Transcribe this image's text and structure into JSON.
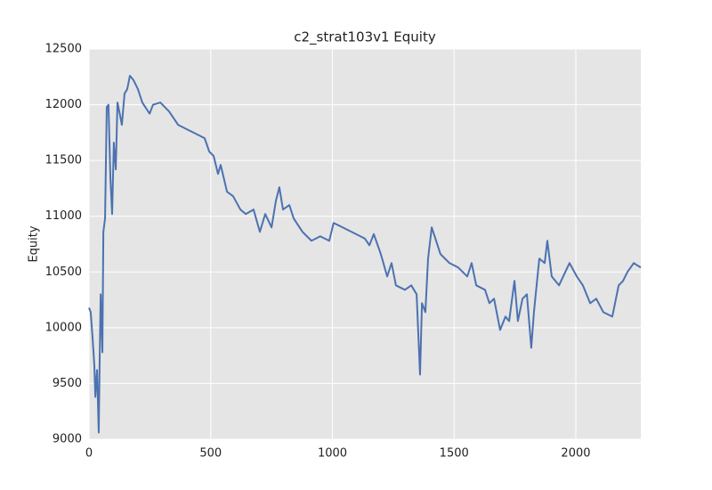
{
  "chart_data": {
    "type": "line",
    "title": "c2_strat103v1 Equity",
    "ylabel": "Equity",
    "x": [
      0,
      7,
      15,
      22,
      26,
      33,
      40,
      44,
      48,
      55,
      59,
      66,
      73,
      80,
      88,
      95,
      102,
      110,
      117,
      128,
      135,
      146,
      157,
      168,
      183,
      201,
      219,
      249,
      263,
      293,
      329,
      366,
      402,
      439,
      475,
      494,
      512,
      530,
      541,
      567,
      592,
      622,
      644,
      676,
      702,
      724,
      750,
      768,
      782,
      797,
      823,
      841,
      877,
      914,
      950,
      987,
      1005,
      1042,
      1097,
      1133,
      1152,
      1170,
      1199,
      1225,
      1243,
      1261,
      1298,
      1324,
      1346,
      1360,
      1368,
      1382,
      1393,
      1408,
      1426,
      1444,
      1481,
      1517,
      1554,
      1572,
      1591,
      1627,
      1645,
      1664,
      1689,
      1711,
      1726,
      1748,
      1762,
      1781,
      1799,
      1817,
      1828,
      1850,
      1872,
      1883,
      1901,
      1931,
      1974,
      2004,
      2029,
      2059,
      2084,
      2113,
      2150,
      2176,
      2194,
      2212,
      2238,
      2252,
      2267
    ],
    "series": [
      {
        "name": "Equity",
        "color": "#4c72b0",
        "values": [
          10180,
          10140,
          9900,
          9660,
          9380,
          9620,
          9060,
          9740,
          10300,
          9780,
          10860,
          10980,
          11980,
          12000,
          11340,
          11020,
          11660,
          11420,
          12020,
          11900,
          11820,
          12100,
          12140,
          12260,
          12220,
          12140,
          12020,
          11920,
          12000,
          12020,
          11940,
          11820,
          11780,
          11740,
          11700,
          11580,
          11540,
          11380,
          11460,
          11220,
          11180,
          11060,
          11020,
          11060,
          10860,
          11020,
          10900,
          11140,
          11260,
          11060,
          11100,
          10980,
          10860,
          10780,
          10820,
          10780,
          10940,
          10900,
          10840,
          10800,
          10740,
          10840,
          10660,
          10460,
          10580,
          10380,
          10340,
          10380,
          10300,
          9580,
          10220,
          10140,
          10620,
          10900,
          10780,
          10660,
          10580,
          10540,
          10460,
          10580,
          10380,
          10340,
          10220,
          10260,
          9980,
          10100,
          10060,
          10420,
          10060,
          10260,
          10300,
          9820,
          10140,
          10620,
          10580,
          10780,
          10460,
          10380,
          10580,
          10460,
          10380,
          10220,
          10260,
          10140,
          10100,
          10380,
          10420,
          10500,
          10580,
          10560,
          10540
        ]
      }
    ],
    "xlim": [
      0,
      2267
    ],
    "ylim": [
      9000,
      12500
    ],
    "xticks": [
      0,
      500,
      1000,
      1500,
      2000
    ],
    "yticks": [
      9000,
      9500,
      10000,
      10500,
      11000,
      11500,
      12000,
      12500
    ],
    "grid": true
  }
}
